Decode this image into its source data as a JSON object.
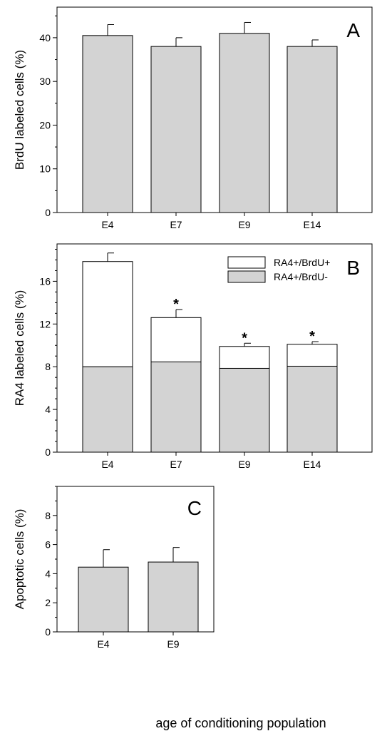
{
  "colors": {
    "bar_fill": "#d3d3d3",
    "upper_fill": "#ffffff",
    "stroke": "#000000"
  },
  "shared_xlabel": "age of conditioning population",
  "chart_data": [
    {
      "type": "bar",
      "panel": "A",
      "categories": [
        "E4",
        "E7",
        "E9",
        "E14"
      ],
      "values": [
        40.5,
        38,
        41,
        38
      ],
      "errors": [
        2.5,
        2,
        2.5,
        1.5
      ],
      "ylabel": "BrdU labeled cells (%)",
      "ylim": [
        0,
        47
      ],
      "yticks": [
        0,
        10,
        20,
        30,
        40
      ],
      "grid": false
    },
    {
      "type": "bar",
      "stacked": true,
      "panel": "B",
      "categories": [
        "E4",
        "E7",
        "E9",
        "E14"
      ],
      "ylabel": "RA4 labeled cells (%)",
      "ylim": [
        0,
        19.5
      ],
      "yticks": [
        0,
        4,
        8,
        12,
        16
      ],
      "legend_position": "top-right",
      "series": [
        {
          "name": "RA4+/BrdU-",
          "values": [
            8,
            8.45,
            7.85,
            8.05
          ],
          "errors": [
            0.7,
            0.6,
            0.8,
            0.55
          ],
          "fill": "#d3d3d3"
        },
        {
          "name": "RA4+/BrdU+",
          "values": [
            9.85,
            4.15,
            2.05,
            2.05
          ],
          "errors": [
            0.8,
            0.75,
            0.3,
            0.25
          ],
          "fill": "#ffffff"
        }
      ],
      "significance": [
        "",
        "*",
        "*",
        "*"
      ],
      "grid": false
    },
    {
      "type": "bar",
      "panel": "C",
      "categories": [
        "E4",
        "E9"
      ],
      "values": [
        4.45,
        4.8
      ],
      "errors": [
        1.2,
        1.0
      ],
      "ylabel": "Apoptotic cells (%)",
      "ylim": [
        0,
        10
      ],
      "yticks": [
        0,
        2,
        4,
        6,
        8
      ],
      "grid": false
    }
  ]
}
